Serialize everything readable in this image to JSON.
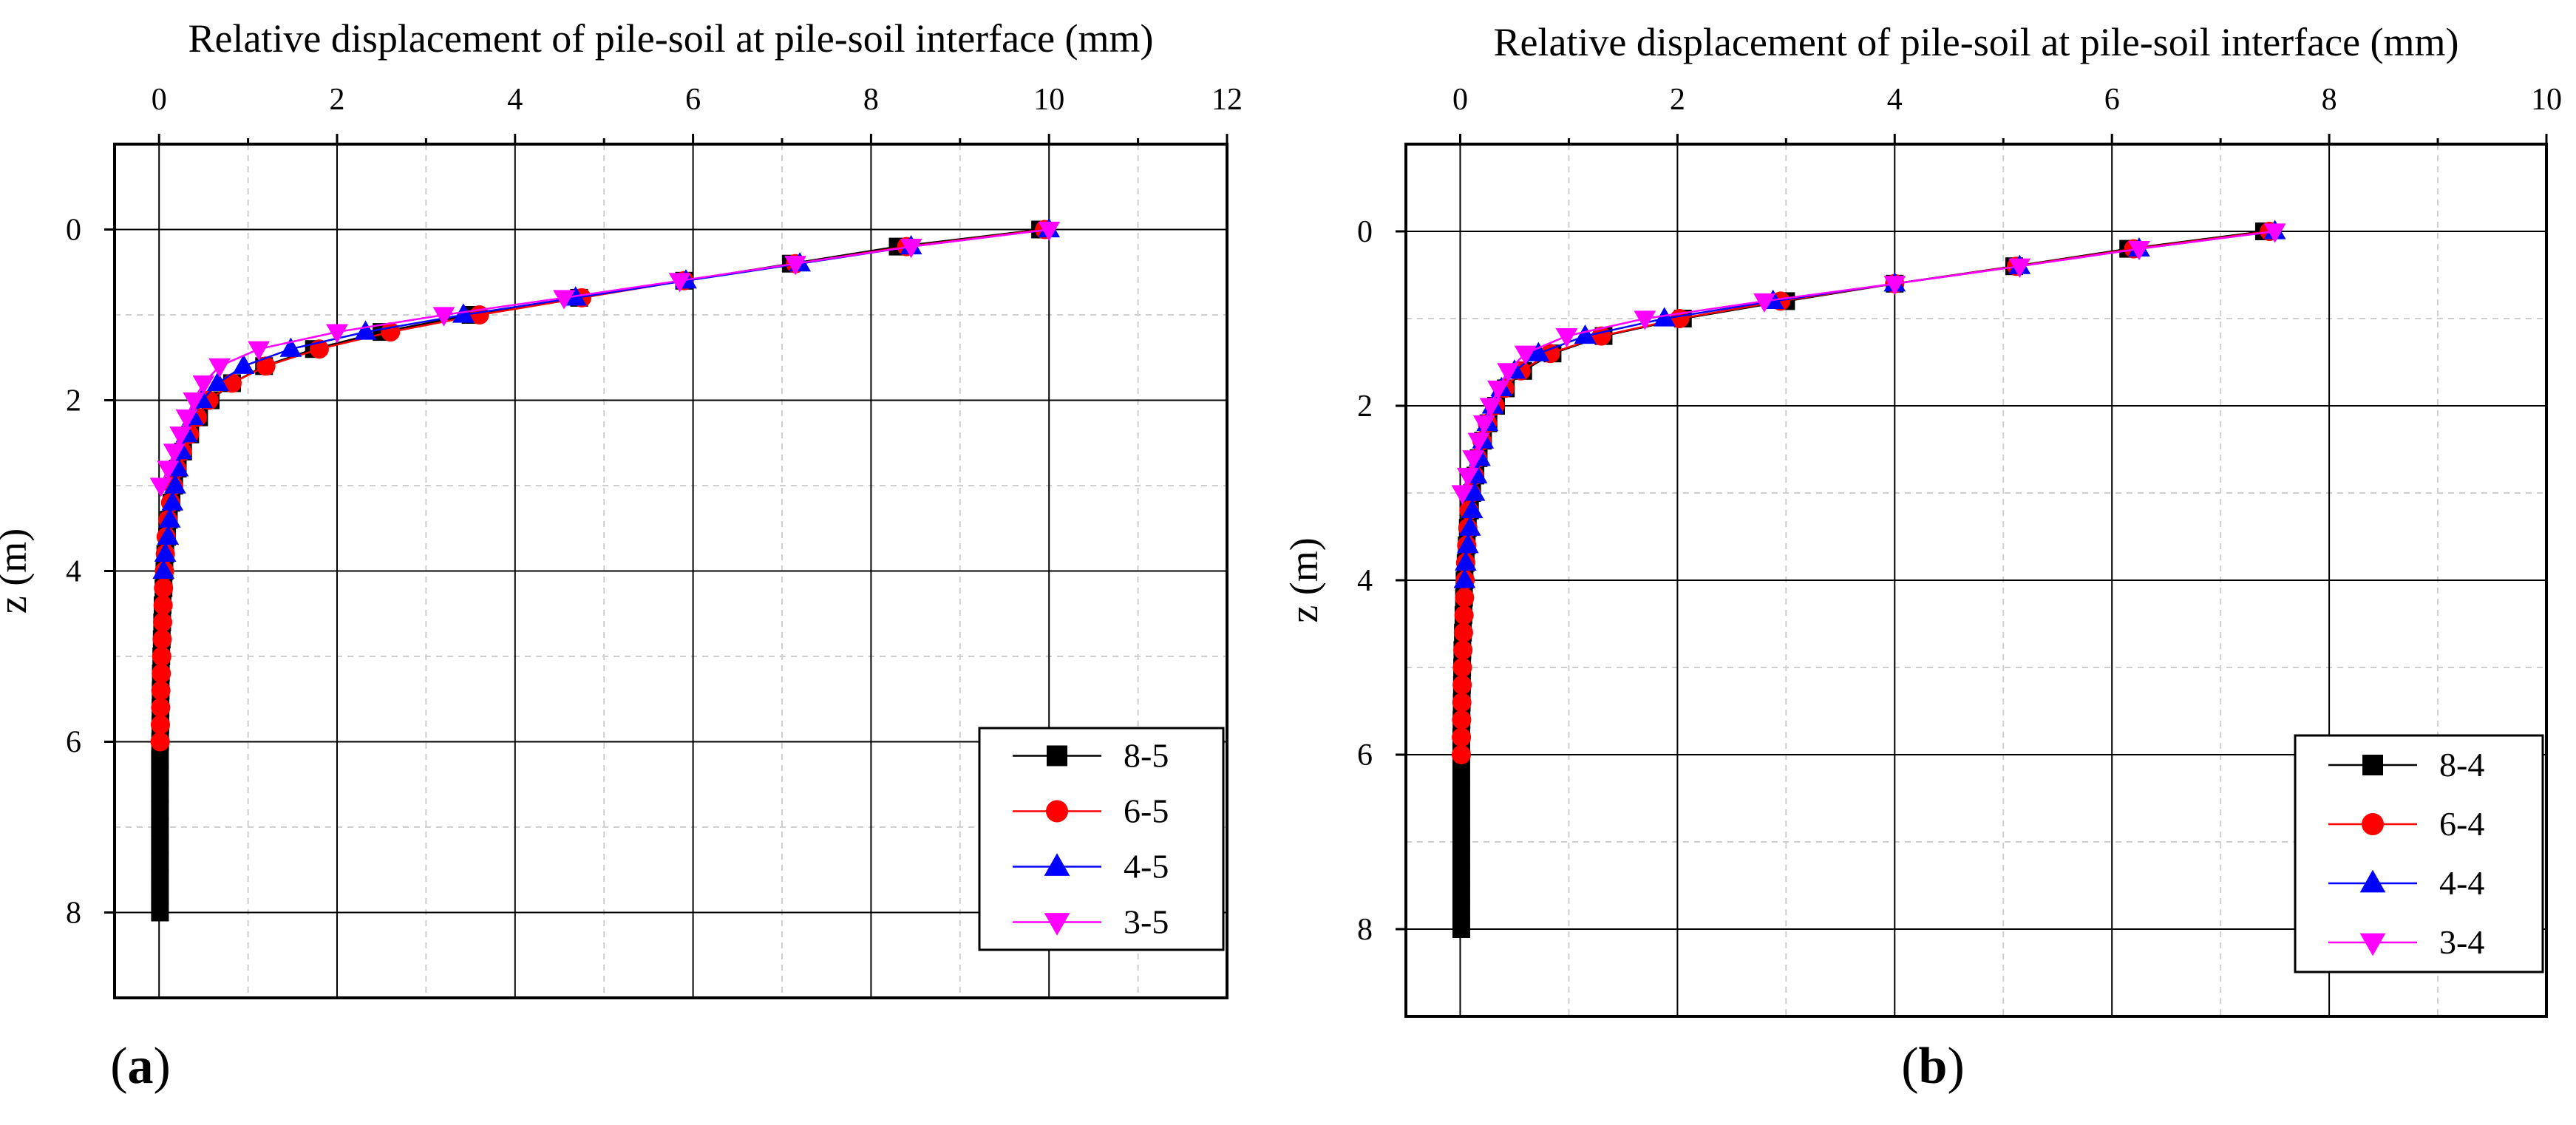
{
  "chart_data": [
    {
      "type": "line",
      "panel_label": "a",
      "title": "Relative displacement of pile-soil at pile-soil interface (mm)",
      "xlabel": "Relative displacement of pile-soil at pile-soil interface (mm)",
      "ylabel": "z (m)",
      "xlim": [
        -0.5,
        12
      ],
      "ylim": [
        -1,
        9
      ],
      "x_ticks": [
        0,
        2,
        4,
        6,
        8,
        10,
        12
      ],
      "y_ticks": [
        0,
        2,
        4,
        6,
        8
      ],
      "x_axis_position": "top",
      "y_axis_inverted": true,
      "grid": true,
      "legend_position": "bottom-right",
      "series": [
        {
          "name": "8-5",
          "color": "#000000",
          "marker": "square",
          "z": [
            0,
            0.2,
            0.4,
            0.6,
            0.8,
            1.0,
            1.2,
            1.4,
            1.6,
            1.8,
            2.0,
            2.2,
            2.4,
            2.6,
            2.8,
            3.0,
            3.2,
            3.4,
            3.6,
            3.8,
            4.0,
            4.2,
            4.4,
            4.6,
            4.8,
            5.0,
            5.2,
            5.4,
            5.6,
            5.8,
            6.0,
            6.2,
            6.4,
            6.6,
            6.8,
            7.0,
            7.2,
            7.4,
            7.6,
            7.8,
            8.0
          ],
          "x": [
            9.9,
            8.3,
            7.1,
            5.9,
            4.72,
            3.5,
            2.5,
            1.74,
            1.18,
            0.82,
            0.58,
            0.45,
            0.35,
            0.27,
            0.21,
            0.17,
            0.14,
            0.11,
            0.09,
            0.07,
            0.06,
            0.05,
            0.04,
            0.035,
            0.03,
            0.025,
            0.02,
            0.018,
            0.016,
            0.014,
            0.012,
            0.01,
            0.01,
            0.01,
            0.01,
            0.01,
            0.01,
            0.01,
            0.01,
            0.01,
            0.01
          ]
        },
        {
          "name": "6-5",
          "color": "#ff0000",
          "marker": "circle",
          "z": [
            0,
            0.2,
            0.4,
            0.6,
            0.8,
            1.0,
            1.2,
            1.4,
            1.6,
            1.8,
            2.0,
            2.2,
            2.4,
            2.6,
            2.8,
            3.0,
            3.2,
            3.4,
            3.6,
            3.8,
            4.0,
            4.2,
            4.4,
            4.6,
            4.8,
            5.0,
            5.2,
            5.4,
            5.6,
            5.8,
            6.0
          ],
          "x": [
            9.95,
            8.4,
            7.15,
            5.9,
            4.75,
            3.6,
            2.6,
            1.8,
            1.2,
            0.82,
            0.56,
            0.43,
            0.34,
            0.26,
            0.2,
            0.16,
            0.13,
            0.1,
            0.08,
            0.07,
            0.06,
            0.05,
            0.045,
            0.04,
            0.035,
            0.03,
            0.025,
            0.02,
            0.018,
            0.015,
            0.012
          ]
        },
        {
          "name": "4-5",
          "color": "#0000ff",
          "marker": "triangle-up",
          "z": [
            0,
            0.2,
            0.4,
            0.6,
            0.8,
            1.0,
            1.2,
            1.4,
            1.6,
            1.8,
            2.0,
            2.2,
            2.4,
            2.6,
            2.8,
            3.0,
            3.2,
            3.4,
            3.6,
            3.8,
            4.0
          ],
          "x": [
            10.0,
            8.45,
            7.2,
            5.92,
            4.68,
            3.42,
            2.32,
            1.48,
            0.95,
            0.66,
            0.48,
            0.38,
            0.31,
            0.25,
            0.21,
            0.18,
            0.15,
            0.12,
            0.1,
            0.07,
            0.05
          ]
        },
        {
          "name": "3-5",
          "color": "#ff00ff",
          "marker": "triangle-down",
          "z": [
            0,
            0.2,
            0.4,
            0.6,
            0.8,
            1.0,
            1.2,
            1.4,
            1.6,
            1.8,
            2.0,
            2.2,
            2.4,
            2.6,
            2.8,
            3.0
          ],
          "x": [
            10.0,
            8.45,
            7.15,
            5.85,
            4.55,
            3.2,
            2.0,
            1.12,
            0.68,
            0.5,
            0.39,
            0.31,
            0.24,
            0.17,
            0.1,
            0.02
          ]
        }
      ]
    },
    {
      "type": "line",
      "panel_label": "b",
      "title": "Relative displacement of pile-soil at pile-soil interface (mm)",
      "xlabel": "Relative displacement of pile-soil at pile-soil interface (mm)",
      "ylabel": "z (m)",
      "xlim": [
        -0.5,
        10
      ],
      "ylim": [
        -1,
        9
      ],
      "x_ticks": [
        0,
        2,
        4,
        6,
        8,
        10
      ],
      "y_ticks": [
        0,
        2,
        4,
        6,
        8
      ],
      "x_axis_position": "top",
      "y_axis_inverted": true,
      "grid": true,
      "legend_position": "bottom-right",
      "series": [
        {
          "name": "8-4",
          "color": "#000000",
          "marker": "square",
          "z": [
            0,
            0.2,
            0.4,
            0.6,
            0.8,
            1.0,
            1.2,
            1.4,
            1.6,
            1.8,
            2.0,
            2.2,
            2.4,
            2.6,
            2.8,
            3.0,
            3.2,
            3.4,
            3.6,
            3.8,
            4.0,
            4.2,
            4.4,
            4.6,
            4.8,
            5.0,
            5.2,
            5.4,
            5.6,
            5.8,
            6.0,
            6.2,
            6.4,
            6.6,
            6.8,
            7.0,
            7.2,
            7.4,
            7.6,
            7.8,
            8.0
          ],
          "x": [
            7.4,
            6.15,
            5.1,
            4.0,
            3.0,
            2.05,
            1.32,
            0.85,
            0.58,
            0.42,
            0.33,
            0.26,
            0.21,
            0.17,
            0.14,
            0.11,
            0.09,
            0.07,
            0.06,
            0.05,
            0.04,
            0.035,
            0.03,
            0.025,
            0.02,
            0.018,
            0.016,
            0.014,
            0.012,
            0.01,
            0.01,
            0.01,
            0.01,
            0.01,
            0.01,
            0.01,
            0.01,
            0.01,
            0.01,
            0.01,
            0.01
          ]
        },
        {
          "name": "6-4",
          "color": "#ff0000",
          "marker": "circle",
          "z": [
            0,
            0.2,
            0.4,
            0.6,
            0.8,
            1.0,
            1.2,
            1.4,
            1.6,
            1.8,
            2.0,
            2.2,
            2.4,
            2.6,
            2.8,
            3.0,
            3.2,
            3.4,
            3.6,
            3.8,
            4.0,
            4.2,
            4.4,
            4.6,
            4.8,
            5.0,
            5.2,
            5.4,
            5.6,
            5.8,
            6.0
          ],
          "x": [
            7.45,
            6.2,
            5.12,
            4.0,
            2.95,
            2.02,
            1.3,
            0.83,
            0.56,
            0.41,
            0.32,
            0.25,
            0.2,
            0.16,
            0.13,
            0.1,
            0.08,
            0.07,
            0.06,
            0.05,
            0.045,
            0.04,
            0.035,
            0.03,
            0.025,
            0.02,
            0.018,
            0.015,
            0.013,
            0.011,
            0.01
          ]
        },
        {
          "name": "4-4",
          "color": "#0000ff",
          "marker": "triangle-up",
          "z": [
            0,
            0.2,
            0.4,
            0.6,
            0.8,
            1.0,
            1.2,
            1.4,
            1.6,
            1.8,
            2.0,
            2.2,
            2.4,
            2.6,
            2.8,
            3.0,
            3.2,
            3.4,
            3.6,
            3.8,
            4.0
          ],
          "x": [
            7.5,
            6.25,
            5.15,
            4.0,
            2.88,
            1.88,
            1.15,
            0.72,
            0.5,
            0.38,
            0.3,
            0.25,
            0.21,
            0.18,
            0.15,
            0.13,
            0.11,
            0.09,
            0.07,
            0.05,
            0.04
          ]
        },
        {
          "name": "3-4",
          "color": "#ff00ff",
          "marker": "triangle-down",
          "z": [
            0,
            0.2,
            0.4,
            0.6,
            0.8,
            1.0,
            1.2,
            1.4,
            1.6,
            1.8,
            2.0,
            2.2,
            2.4,
            2.6,
            2.8,
            3.0
          ],
          "x": [
            7.5,
            6.25,
            5.15,
            4.0,
            2.8,
            1.7,
            0.98,
            0.6,
            0.44,
            0.35,
            0.28,
            0.22,
            0.17,
            0.12,
            0.07,
            0.02
          ]
        }
      ]
    }
  ]
}
